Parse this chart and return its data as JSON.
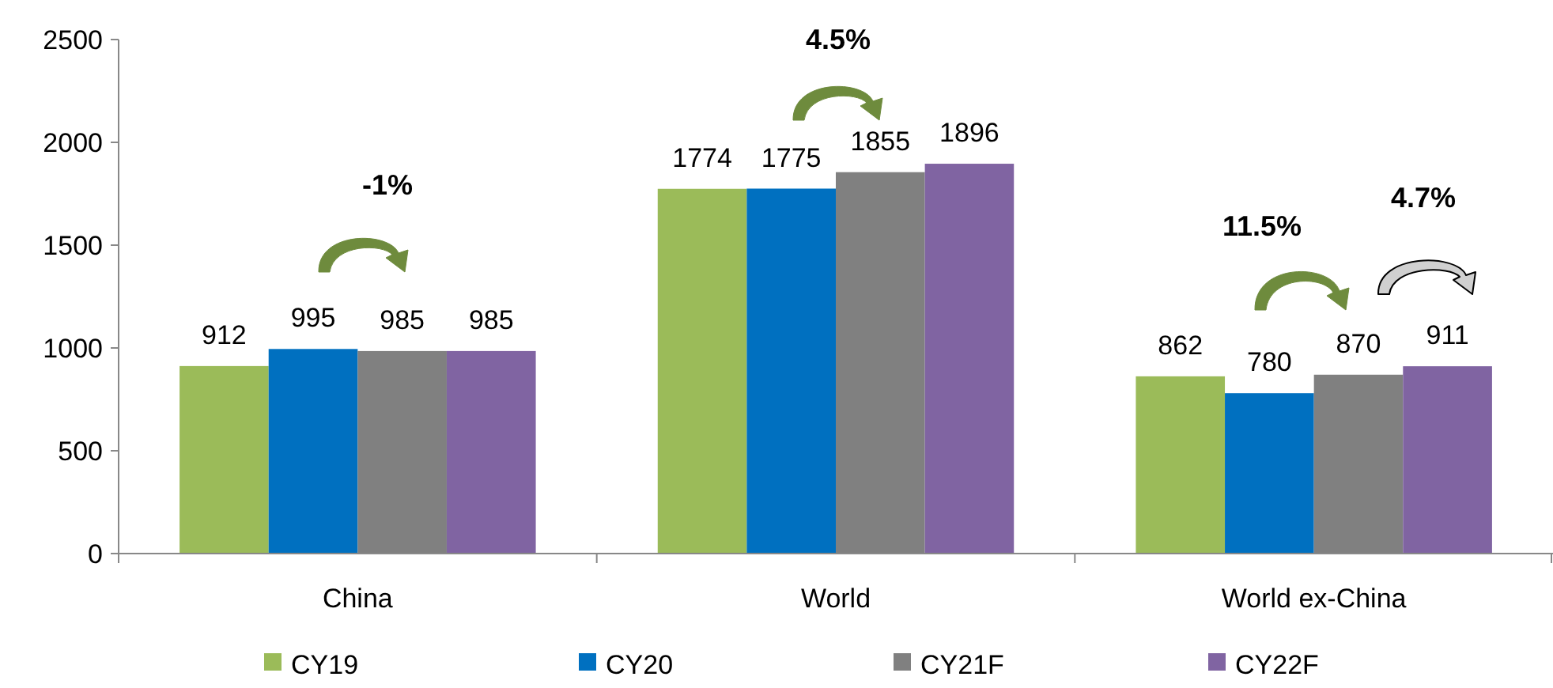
{
  "chart_data": {
    "type": "bar",
    "categories": [
      "China",
      "World",
      "World ex-China"
    ],
    "series": [
      {
        "name": "CY19",
        "color": "#9bbb59",
        "values": [
          912,
          1774,
          862
        ]
      },
      {
        "name": "CY20",
        "color": "#0070c0",
        "values": [
          995,
          1775,
          780
        ]
      },
      {
        "name": "CY21F",
        "color": "#808080",
        "values": [
          985,
          1855,
          870
        ]
      },
      {
        "name": "CY22F",
        "color": "#8064a2",
        "values": [
          985,
          1896,
          911
        ]
      }
    ],
    "ylim": [
      0,
      2500
    ],
    "yticks": [
      0,
      500,
      1000,
      1500,
      2000,
      2500
    ],
    "data_labels": true,
    "grid": false,
    "legend": "bottom",
    "annotations": [
      "-1%",
      "4.5%",
      "11.5%",
      "4.7%"
    ]
  }
}
